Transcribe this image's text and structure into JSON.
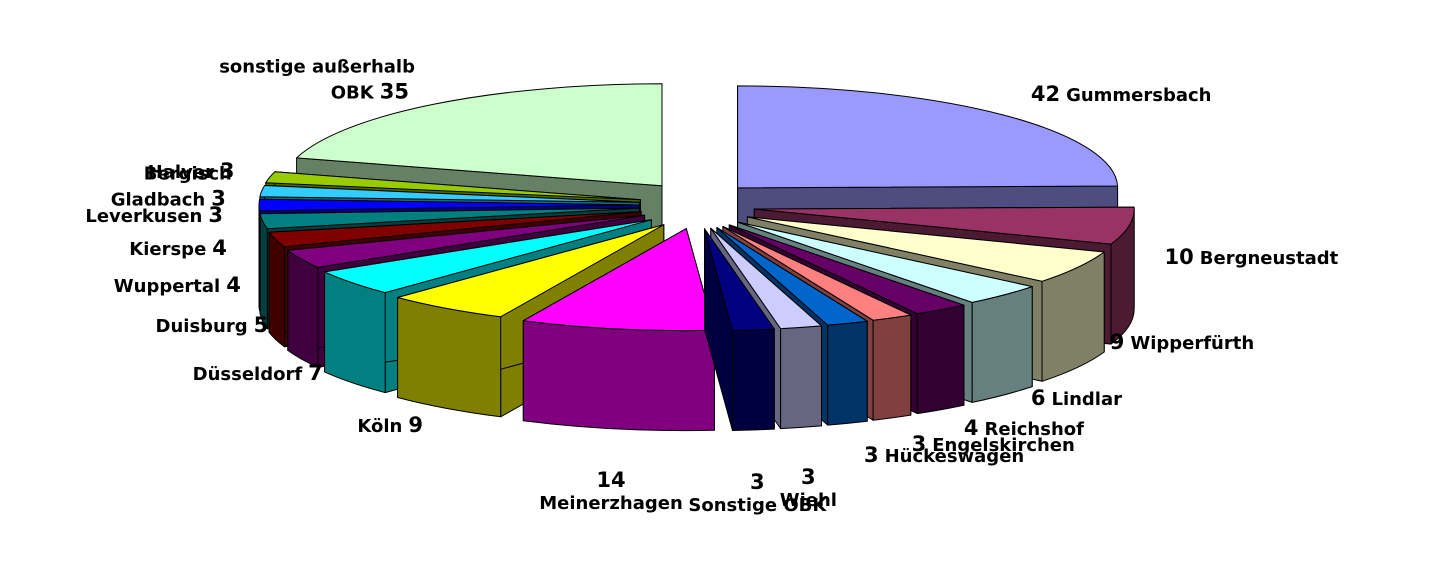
{
  "chart_data": {
    "type": "pie",
    "categories": [
      "Gummersbach",
      "Bergneustadt",
      "Wipperfürth",
      "Lindlar",
      "Reichshof",
      "Engelskirchen",
      "Hückeswagen",
      "Wiehl",
      "Sonstige OBK",
      "Meinerzhagen",
      "Köln",
      "Düsseldorf",
      "Duisburg",
      "Wuppertal",
      "Kierspe",
      "Leverkusen",
      "Bergisch Gladbach",
      "Halver",
      "sonstige außerhalb OBK"
    ],
    "values": [
      42,
      10,
      9,
      6,
      4,
      3,
      3,
      3,
      3,
      14,
      9,
      7,
      5,
      4,
      4,
      3,
      3,
      3,
      35
    ],
    "colors": [
      "#9999ff",
      "#993366",
      "#ffffcc",
      "#ccffff",
      "#660066",
      "#ff8080",
      "#0066cc",
      "#ccccff",
      "#000080",
      "#ff00ff",
      "#ffff00",
      "#00ffff",
      "#800080",
      "#800000",
      "#008080",
      "#0000ff",
      "#33ccff",
      "#99cc00",
      "#ccffcc"
    ]
  }
}
